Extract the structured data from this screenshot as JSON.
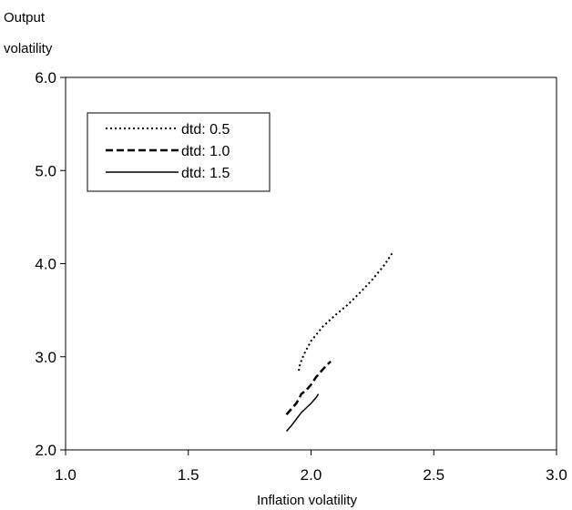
{
  "chart_data": {
    "type": "line",
    "title": "",
    "xlabel": "Inflation volatility",
    "ylabel": "Output\nvolatility",
    "xlim": [
      1.0,
      3.0
    ],
    "ylim": [
      2.0,
      6.0
    ],
    "xticks": [
      1.0,
      1.5,
      2.0,
      2.5,
      3.0
    ],
    "yticks": [
      2.0,
      3.0,
      4.0,
      5.0,
      6.0
    ],
    "x_tick_labels": [
      "1.0",
      "1.5",
      "2.0",
      "2.5",
      "3.0"
    ],
    "y_tick_labels": [
      "2.0",
      "3.0",
      "4.0",
      "5.0",
      "6.0"
    ],
    "grid": false,
    "legend_position": "top-left",
    "series": [
      {
        "name": "dtd: 0.5",
        "style": "dotted",
        "color": "#000000",
        "x": [
          1.95,
          1.955,
          1.97,
          2.0,
          2.05,
          2.1,
          2.15,
          2.2,
          2.25,
          2.3,
          2.33
        ],
        "y": [
          2.85,
          2.92,
          3.02,
          3.17,
          3.33,
          3.45,
          3.56,
          3.69,
          3.83,
          3.99,
          4.11
        ]
      },
      {
        "name": "dtd: 1.0",
        "style": "dashed",
        "color": "#000000",
        "x": [
          1.9,
          1.92,
          1.94,
          1.955,
          1.96,
          1.98,
          2.0,
          2.02,
          2.04,
          2.06,
          2.08
        ],
        "y": [
          2.38,
          2.44,
          2.5,
          2.57,
          2.6,
          2.64,
          2.7,
          2.78,
          2.84,
          2.9,
          2.95
        ]
      },
      {
        "name": "dtd: 1.5",
        "style": "solid",
        "color": "#000000",
        "x": [
          1.9,
          1.92,
          1.94,
          1.96,
          1.98,
          2.0,
          2.02,
          2.03
        ],
        "y": [
          2.2,
          2.26,
          2.33,
          2.4,
          2.45,
          2.5,
          2.56,
          2.6
        ]
      }
    ]
  }
}
